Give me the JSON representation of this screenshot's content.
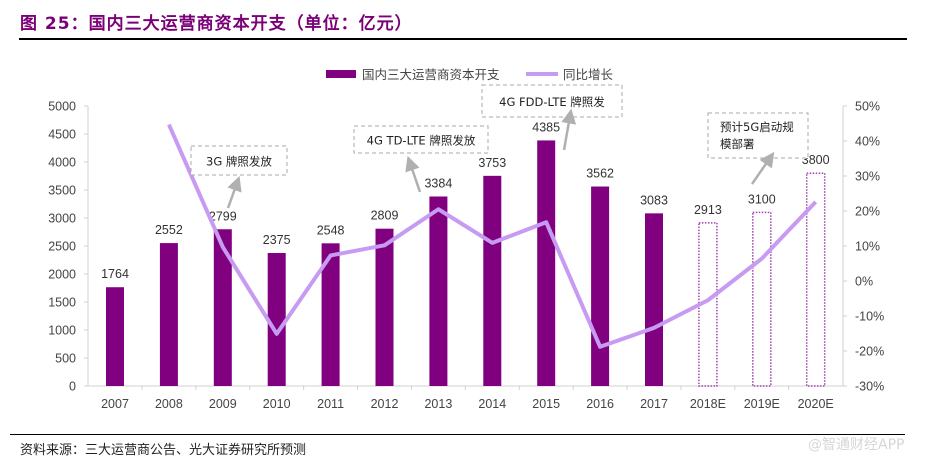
{
  "figure": {
    "title": "图 25：国内三大运营商资本开支（单位：亿元）",
    "source": "资料来源：三大运营商公告、光大证券研究所预测",
    "watermark": "@智通财经APP"
  },
  "colors": {
    "bar": "#800080",
    "bar_estimate_border": "#a040b0",
    "line": "#c79bf2",
    "title": "#7a0078",
    "annotation_border": "#aaaaaa",
    "arrow": "#b0b0b0"
  },
  "chart_data": {
    "type": "bar",
    "title": "国内三大运营商资本开支（单位：亿元）",
    "categories": [
      "2007",
      "2008",
      "2009",
      "2010",
      "2011",
      "2012",
      "2013",
      "2014",
      "2015",
      "2016",
      "2017",
      "2018E",
      "2019E",
      "2020E"
    ],
    "series": [
      {
        "name": "国内三大运营商资本开支",
        "type": "bar",
        "axis": "left",
        "values": [
          1764,
          2552,
          2799,
          2375,
          2548,
          2809,
          3384,
          3753,
          4385,
          3562,
          3083,
          2913,
          3100,
          3800
        ],
        "estimate": [
          false,
          false,
          false,
          false,
          false,
          false,
          false,
          false,
          false,
          false,
          false,
          true,
          true,
          true
        ],
        "labels": [
          "1764",
          "2552",
          "2799",
          "2375",
          "2548",
          "2809",
          "3384",
          "3753",
          "4385",
          "3562",
          "3083",
          "2913",
          "3100",
          "3800"
        ]
      },
      {
        "name": "同比增长",
        "type": "line",
        "axis": "right",
        "values": [
          null,
          44.7,
          9.7,
          -15.1,
          7.3,
          10.2,
          20.5,
          10.9,
          16.8,
          -18.8,
          -13.4,
          -5.5,
          6.4,
          22.6
        ]
      }
    ],
    "y_left": {
      "min": 0,
      "max": 5000,
      "step": 500,
      "ticks": [
        "0",
        "500",
        "1000",
        "1500",
        "2000",
        "2500",
        "3000",
        "3500",
        "4000",
        "4500",
        "5000"
      ]
    },
    "y_right": {
      "min": -30,
      "max": 50,
      "step": 10,
      "ticks": [
        "-30%",
        "-20%",
        "-10%",
        "0%",
        "10%",
        "20%",
        "30%",
        "40%",
        "50%"
      ]
    },
    "xlabel": "",
    "ylabel": "",
    "grid": false,
    "legend": {
      "placement": "top-center",
      "entries": [
        "国内三大运营商资本开支",
        "同比增长"
      ]
    },
    "annotations": [
      {
        "text": [
          "3G 牌照发放"
        ],
        "category": "2009"
      },
      {
        "text": [
          "4G TD-LTE 牌照发放"
        ],
        "category": "2013"
      },
      {
        "text": [
          "4G FDD-LTE 牌照发"
        ],
        "category": "2015"
      },
      {
        "text": [
          "预计5G启动规",
          "模部署"
        ],
        "category": "2019E"
      }
    ]
  }
}
